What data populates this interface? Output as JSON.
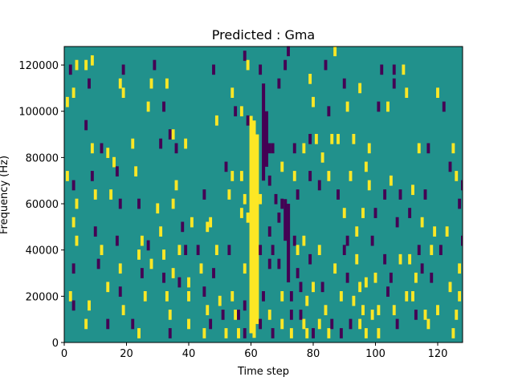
{
  "colors": {
    "background_value": "#21918c",
    "high_value": "#fde725",
    "low_value": "#440154"
  },
  "chart_data": {
    "type": "heatmap",
    "title": "Predicted : Gma",
    "xlabel": "Time step",
    "ylabel": "Frequency (Hz)",
    "xlim": [
      0,
      128
    ],
    "ylim": [
      0,
      128000
    ],
    "xticks": [
      0,
      20,
      40,
      60,
      80,
      100,
      120
    ],
    "yticks": [
      0,
      20000,
      40000,
      60000,
      80000,
      100000,
      120000
    ],
    "grid": false,
    "levels": {
      "background": 0,
      "high": 1,
      "low": -1
    },
    "dense_columns": [
      {
        "x": 60,
        "value": 1,
        "y_ranges": [
          [
            4000,
            98000
          ]
        ]
      },
      {
        "x": 61,
        "value": 1,
        "y_ranges": [
          [
            2000,
            96000
          ]
        ]
      },
      {
        "x": 62,
        "value": 1,
        "y_ranges": [
          [
            8000,
            90000
          ]
        ]
      },
      {
        "x": 64,
        "value": -1,
        "y_ranges": [
          [
            70000,
            112000
          ]
        ]
      },
      {
        "x": 65,
        "value": -1,
        "y_ranges": [
          [
            76000,
            100000
          ]
        ]
      },
      {
        "x": 71,
        "value": -1,
        "y_ranges": [
          [
            44000,
            62000
          ]
        ]
      },
      {
        "x": 72,
        "value": -1,
        "y_ranges": [
          [
            26000,
            60000
          ]
        ]
      }
    ],
    "cells": [
      {
        "x": 2,
        "y": 118000,
        "v": -1
      },
      {
        "x": 3,
        "y": 108000,
        "v": 1
      },
      {
        "x": 1,
        "y": 104000,
        "v": 1
      },
      {
        "x": 4,
        "y": 120000,
        "v": 1
      },
      {
        "x": 7,
        "y": 120000,
        "v": 1
      },
      {
        "x": 9,
        "y": 122000,
        "v": 1
      },
      {
        "x": 8,
        "y": 112000,
        "v": -1
      },
      {
        "x": 7,
        "y": 94000,
        "v": -1
      },
      {
        "x": 9,
        "y": 84000,
        "v": 1
      },
      {
        "x": 12,
        "y": 84000,
        "v": -1
      },
      {
        "x": 1,
        "y": 72000,
        "v": 1
      },
      {
        "x": 3,
        "y": 68000,
        "v": -1
      },
      {
        "x": 4,
        "y": 60000,
        "v": 1
      },
      {
        "x": 9,
        "y": 72000,
        "v": -1
      },
      {
        "x": 10,
        "y": 64000,
        "v": 1
      },
      {
        "x": 3,
        "y": 52000,
        "v": 1
      },
      {
        "x": 4,
        "y": 44000,
        "v": 1
      },
      {
        "x": 10,
        "y": 48000,
        "v": -1
      },
      {
        "x": 12,
        "y": 40000,
        "v": 1
      },
      {
        "x": 11,
        "y": 34000,
        "v": -1
      },
      {
        "x": 3,
        "y": 32000,
        "v": -1
      },
      {
        "x": 2,
        "y": 20000,
        "v": 1
      },
      {
        "x": 3,
        "y": 16000,
        "v": -1
      },
      {
        "x": 8,
        "y": 16000,
        "v": 1
      },
      {
        "x": 7,
        "y": 8000,
        "v": 1
      },
      {
        "x": 14,
        "y": 8000,
        "v": -1
      },
      {
        "x": 14,
        "y": 24000,
        "v": 1
      },
      {
        "x": 14,
        "y": 82000,
        "v": 1
      },
      {
        "x": 16,
        "y": 78000,
        "v": 1
      },
      {
        "x": 15,
        "y": 64000,
        "v": 1
      },
      {
        "x": 17,
        "y": 74000,
        "v": -1
      },
      {
        "x": 18,
        "y": 60000,
        "v": -1
      },
      {
        "x": 17,
        "y": 44000,
        "v": -1
      },
      {
        "x": 18,
        "y": 32000,
        "v": 1
      },
      {
        "x": 18,
        "y": 22000,
        "v": -1
      },
      {
        "x": 18,
        "y": 112000,
        "v": 1
      },
      {
        "x": 19,
        "y": 118000,
        "v": -1
      },
      {
        "x": 19,
        "y": 108000,
        "v": 1
      },
      {
        "x": 19,
        "y": 14000,
        "v": 1
      },
      {
        "x": 22,
        "y": 8000,
        "v": -1
      },
      {
        "x": 22,
        "y": 86000,
        "v": 1
      },
      {
        "x": 23,
        "y": 74000,
        "v": 1
      },
      {
        "x": 24,
        "y": 60000,
        "v": -1
      },
      {
        "x": 25,
        "y": 44000,
        "v": 1
      },
      {
        "x": 24,
        "y": 38000,
        "v": 1
      },
      {
        "x": 25,
        "y": 30000,
        "v": -1
      },
      {
        "x": 26,
        "y": 20000,
        "v": 1
      },
      {
        "x": 24,
        "y": 4000,
        "v": 1
      },
      {
        "x": 27,
        "y": 42000,
        "v": -1
      },
      {
        "x": 28,
        "y": 34000,
        "v": 1
      },
      {
        "x": 27,
        "y": 102000,
        "v": 1
      },
      {
        "x": 28,
        "y": 112000,
        "v": 1
      },
      {
        "x": 29,
        "y": 120000,
        "v": -1
      },
      {
        "x": 30,
        "y": 58000,
        "v": 1
      },
      {
        "x": 31,
        "y": 48000,
        "v": 1
      },
      {
        "x": 32,
        "y": 38000,
        "v": 1
      },
      {
        "x": 32,
        "y": 28000,
        "v": -1
      },
      {
        "x": 33,
        "y": 20000,
        "v": 1
      },
      {
        "x": 34,
        "y": 12000,
        "v": 1
      },
      {
        "x": 34,
        "y": 4000,
        "v": -1
      },
      {
        "x": 31,
        "y": 86000,
        "v": -1
      },
      {
        "x": 32,
        "y": 102000,
        "v": -1
      },
      {
        "x": 33,
        "y": 112000,
        "v": 1
      },
      {
        "x": 34,
        "y": 90000,
        "v": -1
      },
      {
        "x": 35,
        "y": 90000,
        "v": 1
      },
      {
        "x": 36,
        "y": 84000,
        "v": -1
      },
      {
        "x": 36,
        "y": 68000,
        "v": 1
      },
      {
        "x": 35,
        "y": 60000,
        "v": 1
      },
      {
        "x": 35,
        "y": 30000,
        "v": 1
      },
      {
        "x": 37,
        "y": 26000,
        "v": -1
      },
      {
        "x": 37,
        "y": 40000,
        "v": 1
      },
      {
        "x": 38,
        "y": 50000,
        "v": -1
      },
      {
        "x": 39,
        "y": 40000,
        "v": -1
      },
      {
        "x": 39,
        "y": 86000,
        "v": 1
      },
      {
        "x": 40,
        "y": 26000,
        "v": 1
      },
      {
        "x": 40,
        "y": 20000,
        "v": 1
      },
      {
        "x": 40,
        "y": 8000,
        "v": 1
      },
      {
        "x": 41,
        "y": 52000,
        "v": 1
      },
      {
        "x": 43,
        "y": 40000,
        "v": -1
      },
      {
        "x": 44,
        "y": 32000,
        "v": 1
      },
      {
        "x": 45,
        "y": 64000,
        "v": -1
      },
      {
        "x": 46,
        "y": 50000,
        "v": 1
      },
      {
        "x": 45,
        "y": 22000,
        "v": -1
      },
      {
        "x": 46,
        "y": 14000,
        "v": 1
      },
      {
        "x": 47,
        "y": 8000,
        "v": -1
      },
      {
        "x": 45,
        "y": 4000,
        "v": 1
      },
      {
        "x": 48,
        "y": 118000,
        "v": -1
      },
      {
        "x": 49,
        "y": 96000,
        "v": 1
      },
      {
        "x": 47,
        "y": 52000,
        "v": 1
      },
      {
        "x": 49,
        "y": 40000,
        "v": 1
      },
      {
        "x": 48,
        "y": 30000,
        "v": -1
      },
      {
        "x": 50,
        "y": 18000,
        "v": 1
      },
      {
        "x": 51,
        "y": 12000,
        "v": -1
      },
      {
        "x": 52,
        "y": 4000,
        "v": 1
      },
      {
        "x": 52,
        "y": 76000,
        "v": -1
      },
      {
        "x": 54,
        "y": 72000,
        "v": 1
      },
      {
        "x": 53,
        "y": 64000,
        "v": 1
      },
      {
        "x": 53,
        "y": 40000,
        "v": -1
      },
      {
        "x": 54,
        "y": 20000,
        "v": 1
      },
      {
        "x": 54,
        "y": 108000,
        "v": 1
      },
      {
        "x": 55,
        "y": 12000,
        "v": 1
      },
      {
        "x": 56,
        "y": 12000,
        "v": -1
      },
      {
        "x": 56,
        "y": 4000,
        "v": 1
      },
      {
        "x": 55,
        "y": 100000,
        "v": -1
      },
      {
        "x": 57,
        "y": 56000,
        "v": 1
      },
      {
        "x": 57,
        "y": 72000,
        "v": 1
      },
      {
        "x": 58,
        "y": 62000,
        "v": 1
      },
      {
        "x": 59,
        "y": 54000,
        "v": 1
      },
      {
        "x": 58,
        "y": 32000,
        "v": 1
      },
      {
        "x": 58,
        "y": 16000,
        "v": -1
      },
      {
        "x": 58,
        "y": 4000,
        "v": -1
      },
      {
        "x": 57,
        "y": 100000,
        "v": 1
      },
      {
        "x": 58,
        "y": 124000,
        "v": -1
      },
      {
        "x": 59,
        "y": 120000,
        "v": 1
      },
      {
        "x": 59,
        "y": 96000,
        "v": -1
      },
      {
        "x": 63,
        "y": 62000,
        "v": 1
      },
      {
        "x": 63,
        "y": 40000,
        "v": -1
      },
      {
        "x": 63,
        "y": 8000,
        "v": -1
      },
      {
        "x": 64,
        "y": 20000,
        "v": -1
      },
      {
        "x": 63,
        "y": 118000,
        "v": -1
      },
      {
        "x": 66,
        "y": 84000,
        "v": -1
      },
      {
        "x": 66,
        "y": 70000,
        "v": -1
      },
      {
        "x": 67,
        "y": 84000,
        "v": -1
      },
      {
        "x": 66,
        "y": 48000,
        "v": -1
      },
      {
        "x": 67,
        "y": 40000,
        "v": -1
      },
      {
        "x": 66,
        "y": 12000,
        "v": 1
      },
      {
        "x": 66,
        "y": 34000,
        "v": -1
      },
      {
        "x": 67,
        "y": 4000,
        "v": -1
      },
      {
        "x": 68,
        "y": 62000,
        "v": -1
      },
      {
        "x": 69,
        "y": 54000,
        "v": -1
      },
      {
        "x": 69,
        "y": 34000,
        "v": -1
      },
      {
        "x": 69,
        "y": 112000,
        "v": -1
      },
      {
        "x": 70,
        "y": 76000,
        "v": 1
      },
      {
        "x": 70,
        "y": 60000,
        "v": -1
      },
      {
        "x": 70,
        "y": 20000,
        "v": 1
      },
      {
        "x": 70,
        "y": 8000,
        "v": 1
      },
      {
        "x": 71,
        "y": 120000,
        "v": -1
      },
      {
        "x": 72,
        "y": 126000,
        "v": -1
      },
      {
        "x": 73,
        "y": 20000,
        "v": -1
      },
      {
        "x": 73,
        "y": 12000,
        "v": -1
      },
      {
        "x": 73,
        "y": 4000,
        "v": 1
      },
      {
        "x": 74,
        "y": 84000,
        "v": -1
      },
      {
        "x": 74,
        "y": 72000,
        "v": 1
      },
      {
        "x": 74,
        "y": 44000,
        "v": -1
      },
      {
        "x": 75,
        "y": 64000,
        "v": -1
      },
      {
        "x": 75,
        "y": 40000,
        "v": 1
      },
      {
        "x": 75,
        "y": 30000,
        "v": -1
      },
      {
        "x": 76,
        "y": 12000,
        "v": -1
      },
      {
        "x": 76,
        "y": 24000,
        "v": -1
      },
      {
        "x": 77,
        "y": 44000,
        "v": 1
      },
      {
        "x": 77,
        "y": 8000,
        "v": 1
      },
      {
        "x": 78,
        "y": 4000,
        "v": 1
      },
      {
        "x": 77,
        "y": 84000,
        "v": 1
      },
      {
        "x": 78,
        "y": 18000,
        "v": 1
      },
      {
        "x": 79,
        "y": 36000,
        "v": -1
      },
      {
        "x": 79,
        "y": 72000,
        "v": -1
      },
      {
        "x": 79,
        "y": 88000,
        "v": -1
      },
      {
        "x": 79,
        "y": 114000,
        "v": 1
      },
      {
        "x": 80,
        "y": 24000,
        "v": 1
      },
      {
        "x": 80,
        "y": 4000,
        "v": -1
      },
      {
        "x": 80,
        "y": 104000,
        "v": 1
      },
      {
        "x": 81,
        "y": 88000,
        "v": 1
      },
      {
        "x": 82,
        "y": 40000,
        "v": 1
      },
      {
        "x": 82,
        "y": 68000,
        "v": -1
      },
      {
        "x": 82,
        "y": 8000,
        "v": 1
      },
      {
        "x": 83,
        "y": 24000,
        "v": -1
      },
      {
        "x": 83,
        "y": 80000,
        "v": 1
      },
      {
        "x": 84,
        "y": 120000,
        "v": -1
      },
      {
        "x": 84,
        "y": 14000,
        "v": 1
      },
      {
        "x": 85,
        "y": 72000,
        "v": 1
      },
      {
        "x": 85,
        "y": 4000,
        "v": 1
      },
      {
        "x": 85,
        "y": 100000,
        "v": -1
      },
      {
        "x": 86,
        "y": 88000,
        "v": 1
      },
      {
        "x": 86,
        "y": 8000,
        "v": -1
      },
      {
        "x": 87,
        "y": 32000,
        "v": 1
      },
      {
        "x": 87,
        "y": 126000,
        "v": 1
      },
      {
        "x": 88,
        "y": 64000,
        "v": -1
      },
      {
        "x": 88,
        "y": 88000,
        "v": 1
      },
      {
        "x": 89,
        "y": 20000,
        "v": 1
      },
      {
        "x": 89,
        "y": 4000,
        "v": -1
      },
      {
        "x": 90,
        "y": 40000,
        "v": -1
      },
      {
        "x": 90,
        "y": 56000,
        "v": 1
      },
      {
        "x": 90,
        "y": 112000,
        "v": -1
      },
      {
        "x": 91,
        "y": 28000,
        "v": -1
      },
      {
        "x": 91,
        "y": 44000,
        "v": -1
      },
      {
        "x": 91,
        "y": 102000,
        "v": 1
      },
      {
        "x": 92,
        "y": 8000,
        "v": -1
      },
      {
        "x": 92,
        "y": 72000,
        "v": 1
      },
      {
        "x": 93,
        "y": 18000,
        "v": 1
      },
      {
        "x": 93,
        "y": 88000,
        "v": 1
      },
      {
        "x": 94,
        "y": 36000,
        "v": 1
      },
      {
        "x": 94,
        "y": 48000,
        "v": 1
      },
      {
        "x": 95,
        "y": 8000,
        "v": 1
      },
      {
        "x": 95,
        "y": 24000,
        "v": 1
      },
      {
        "x": 95,
        "y": 110000,
        "v": 1
      },
      {
        "x": 96,
        "y": 56000,
        "v": 1
      },
      {
        "x": 96,
        "y": 14000,
        "v": 1
      },
      {
        "x": 97,
        "y": 4000,
        "v": 1
      },
      {
        "x": 97,
        "y": 26000,
        "v": 1
      },
      {
        "x": 97,
        "y": 76000,
        "v": 1
      },
      {
        "x": 98,
        "y": 84000,
        "v": 1
      },
      {
        "x": 98,
        "y": 68000,
        "v": 1
      },
      {
        "x": 99,
        "y": 44000,
        "v": -1
      },
      {
        "x": 99,
        "y": 12000,
        "v": 1
      },
      {
        "x": 100,
        "y": 28000,
        "v": 1
      },
      {
        "x": 100,
        "y": 56000,
        "v": -1
      },
      {
        "x": 101,
        "y": 14000,
        "v": 1
      },
      {
        "x": 101,
        "y": 4000,
        "v": 1
      },
      {
        "x": 101,
        "y": 102000,
        "v": -1
      },
      {
        "x": 102,
        "y": 118000,
        "v": -1
      },
      {
        "x": 103,
        "y": 64000,
        "v": -1
      },
      {
        "x": 103,
        "y": 36000,
        "v": -1
      },
      {
        "x": 104,
        "y": 102000,
        "v": 1
      },
      {
        "x": 104,
        "y": 22000,
        "v": -1
      },
      {
        "x": 105,
        "y": 70000,
        "v": 1
      },
      {
        "x": 105,
        "y": 28000,
        "v": -1
      },
      {
        "x": 106,
        "y": 14000,
        "v": 1
      },
      {
        "x": 106,
        "y": 112000,
        "v": -1
      },
      {
        "x": 106,
        "y": 118000,
        "v": -1
      },
      {
        "x": 107,
        "y": 52000,
        "v": -1
      },
      {
        "x": 107,
        "y": 8000,
        "v": -1
      },
      {
        "x": 108,
        "y": 36000,
        "v": 1
      },
      {
        "x": 108,
        "y": 64000,
        "v": -1
      },
      {
        "x": 109,
        "y": 118000,
        "v": 1
      },
      {
        "x": 110,
        "y": 108000,
        "v": 1
      },
      {
        "x": 110,
        "y": 20000,
        "v": 1
      },
      {
        "x": 111,
        "y": 36000,
        "v": 1
      },
      {
        "x": 111,
        "y": 56000,
        "v": -1
      },
      {
        "x": 112,
        "y": 20000,
        "v": 1
      },
      {
        "x": 112,
        "y": 66000,
        "v": 1
      },
      {
        "x": 113,
        "y": 28000,
        "v": 1
      },
      {
        "x": 113,
        "y": 12000,
        "v": -1
      },
      {
        "x": 114,
        "y": 84000,
        "v": 1
      },
      {
        "x": 114,
        "y": 40000,
        "v": -1
      },
      {
        "x": 115,
        "y": 52000,
        "v": 1
      },
      {
        "x": 115,
        "y": 32000,
        "v": -1
      },
      {
        "x": 116,
        "y": 64000,
        "v": -1
      },
      {
        "x": 116,
        "y": 12000,
        "v": 1
      },
      {
        "x": 117,
        "y": 84000,
        "v": -1
      },
      {
        "x": 117,
        "y": 8000,
        "v": 1
      },
      {
        "x": 118,
        "y": 40000,
        "v": 1
      },
      {
        "x": 118,
        "y": 28000,
        "v": -1
      },
      {
        "x": 119,
        "y": 48000,
        "v": 1
      },
      {
        "x": 120,
        "y": 14000,
        "v": 1
      },
      {
        "x": 120,
        "y": 108000,
        "v": 1
      },
      {
        "x": 121,
        "y": 40000,
        "v": -1
      },
      {
        "x": 122,
        "y": 102000,
        "v": -1
      },
      {
        "x": 123,
        "y": 48000,
        "v": 1
      },
      {
        "x": 124,
        "y": 24000,
        "v": 1
      },
      {
        "x": 124,
        "y": 76000,
        "v": -1
      },
      {
        "x": 125,
        "y": 84000,
        "v": 1
      },
      {
        "x": 126,
        "y": 72000,
        "v": 1
      },
      {
        "x": 126,
        "y": 12000,
        "v": 1
      },
      {
        "x": 127,
        "y": 60000,
        "v": -1
      },
      {
        "x": 128,
        "y": 44000,
        "v": -1
      },
      {
        "x": 128,
        "y": 68000,
        "v": -1
      },
      {
        "x": 127,
        "y": 32000,
        "v": 1
      },
      {
        "x": 127,
        "y": 20000,
        "v": 1
      },
      {
        "x": 125,
        "y": 4000,
        "v": 1
      }
    ]
  }
}
